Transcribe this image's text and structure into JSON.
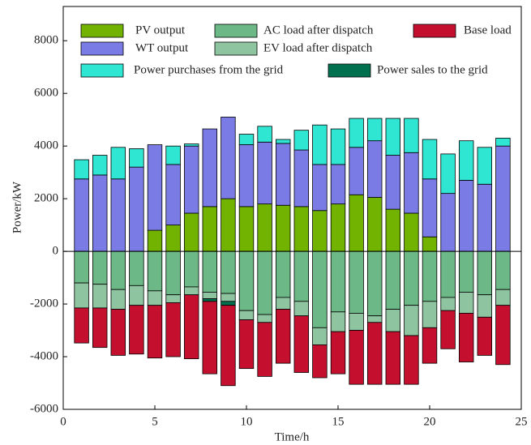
{
  "chart_data": {
    "type": "bar",
    "x_label": "Time/h",
    "y_label": "Power/kW",
    "x": [
      1,
      2,
      3,
      4,
      5,
      6,
      7,
      8,
      9,
      10,
      11,
      12,
      13,
      14,
      15,
      16,
      17,
      18,
      19,
      20,
      21,
      22,
      23,
      24
    ],
    "series": [
      {
        "name": "PV output",
        "color": "#72b200",
        "values": [
          0,
          0,
          0,
          0,
          800,
          1000,
          1450,
          1700,
          2000,
          1700,
          1800,
          1750,
          1700,
          1550,
          1800,
          2150,
          2050,
          1600,
          1450,
          550,
          0,
          0,
          0,
          0
        ]
      },
      {
        "name": "WT output",
        "color": "#7b7be6",
        "values": [
          2750,
          2900,
          2750,
          3200,
          3250,
          2300,
          2550,
          2950,
          3100,
          2350,
          2350,
          2350,
          2150,
          1750,
          1500,
          1800,
          2150,
          2050,
          2300,
          2200,
          2200,
          2700,
          2550,
          4000
        ]
      },
      {
        "name": "Power purchases from the grid",
        "color": "#2fe6d2",
        "values": [
          730,
          750,
          1200,
          700,
          0,
          700,
          80,
          0,
          0,
          400,
          600,
          150,
          750,
          1500,
          1350,
          1100,
          850,
          1400,
          1300,
          1500,
          1500,
          1500,
          1400,
          300
        ]
      },
      {
        "name": "AC load after dispatch",
        "color": "#6cb987",
        "values": [
          -1200,
          -1250,
          -1450,
          -1300,
          -1500,
          -1650,
          -1350,
          -1550,
          -1600,
          -2250,
          -2400,
          -1750,
          -1900,
          -2900,
          -2300,
          -2350,
          -2450,
          -2200,
          -2050,
          -1900,
          -1750,
          -1550,
          -1650,
          -1450
        ]
      },
      {
        "name": "EV load after dispatch",
        "color": "#8ec4a0",
        "values": [
          -950,
          -900,
          -750,
          -750,
          -550,
          -300,
          -300,
          -250,
          -300,
          -350,
          -300,
          -450,
          -550,
          -650,
          -750,
          -650,
          -250,
          -850,
          -1150,
          -1000,
          -500,
          -800,
          -850,
          -600
        ]
      },
      {
        "name": "Power sales to the grid",
        "color": "#00704f",
        "values": [
          0,
          0,
          0,
          0,
          0,
          0,
          0,
          -100,
          -150,
          0,
          0,
          0,
          0,
          0,
          0,
          0,
          0,
          0,
          0,
          0,
          0,
          0,
          0,
          0
        ]
      },
      {
        "name": "Base load",
        "color": "#c4102e",
        "values": [
          -1330,
          -1500,
          -1750,
          -1850,
          -2000,
          -2050,
          -2430,
          -2750,
          -3050,
          -1850,
          -2050,
          -2050,
          -2150,
          -1250,
          -1600,
          -2050,
          -2350,
          -2000,
          -1850,
          -1350,
          -1450,
          -1850,
          -1450,
          -2250
        ]
      }
    ],
    "xlim": [
      0,
      25
    ],
    "xticks": [
      0,
      5,
      10,
      15,
      20,
      25
    ],
    "ylim": [
      -6000,
      9300
    ],
    "yticks": [
      -6000,
      -4000,
      -2000,
      0,
      2000,
      4000,
      6000,
      8000
    ]
  }
}
